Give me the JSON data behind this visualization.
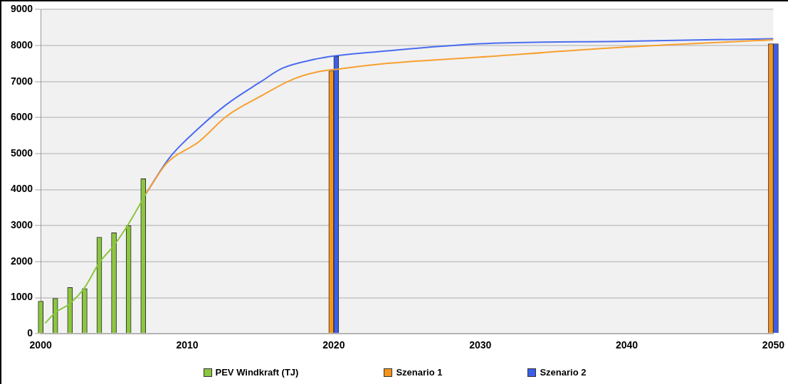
{
  "chart_data": {
    "type": "bar",
    "xlim": [
      2000,
      2050
    ],
    "xticks": [
      2000,
      2010,
      2020,
      2030,
      2040,
      2050
    ],
    "ylim": [
      0,
      9000
    ],
    "yticks": [
      0,
      1000,
      2000,
      3000,
      4000,
      5000,
      6000,
      7000,
      8000,
      9000
    ],
    "grid": "y",
    "legend": "bottom",
    "series": [
      {
        "name": "PEV Windkraft (TJ)",
        "color": "#8cc63f",
        "x": [
          2000,
          2001,
          2002,
          2003,
          2004,
          2005,
          2006,
          2007
        ],
        "values": [
          900,
          980,
          1280,
          1250,
          2680,
          2800,
          3000,
          4300
        ]
      },
      {
        "type": "line",
        "color": "#8cc63f",
        "x": [
          2000.3,
          2001,
          2002,
          2003,
          2004,
          2005,
          2006,
          2007.2
        ],
        "values": [
          290,
          580,
          840,
          1280,
          1970,
          2450,
          3050,
          3900
        ]
      },
      {
        "name": "Szenario 1",
        "color": "#f7941d",
        "x": [
          2020,
          2050
        ],
        "values": [
          7300,
          8050
        ]
      },
      {
        "name": "Szenario 2",
        "color": "#3b5fe8",
        "x": [
          2020,
          2050
        ],
        "values": [
          7700,
          8050
        ]
      },
      {
        "type": "line",
        "color": "#f7a030",
        "x": [
          2007.2,
          2008.6,
          2010.8,
          2012.7,
          2015,
          2017.2,
          2018.8,
          2020.4,
          2023,
          2030,
          2040,
          2050
        ],
        "values": [
          3900,
          4730,
          5330,
          6040,
          6590,
          7060,
          7260,
          7350,
          7480,
          7680,
          7960,
          8160
        ]
      },
      {
        "type": "line",
        "color": "#4a6cf0",
        "x": [
          2007.2,
          2008.8,
          2010.8,
          2012.7,
          2015,
          2016.5,
          2018.6,
          2020.2,
          2023,
          2030,
          2040,
          2050
        ],
        "values": [
          3900,
          4890,
          5710,
          6370,
          6990,
          7370,
          7610,
          7720,
          7830,
          8050,
          8120,
          8190
        ]
      }
    ]
  }
}
